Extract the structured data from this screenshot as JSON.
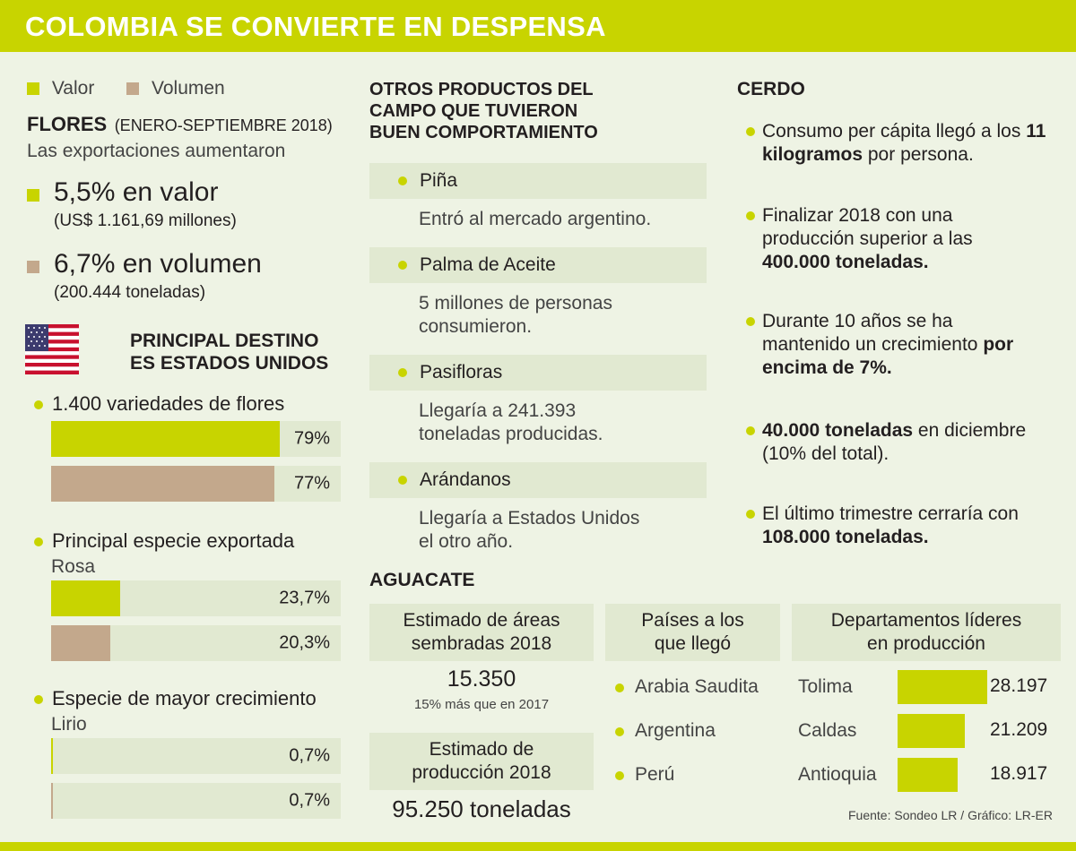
{
  "header": {
    "title": "COLOMBIA SE CONVIERTE EN DESPENSA"
  },
  "colors": {
    "valor": "#c8d400",
    "volumen": "#c3a88c",
    "bg": "#eef3e4",
    "panel": "#e1e9d1"
  },
  "legend": {
    "valor": "Valor",
    "volumen": "Volumen"
  },
  "flores": {
    "title": "FLORES",
    "period": "(ENERO-SEPTIEMBRE 2018)",
    "subtitle": "Las exportaciones aumentaron",
    "valor_pct": "5,5% en valor",
    "valor_detail": "(US$ 1.161,69 millones)",
    "volumen_pct": "6,7% en volumen",
    "volumen_detail": "(200.444 toneladas)",
    "destino_line1": "PRINCIPAL DESTINO",
    "destino_line2": "ES ESTADOS UNIDOS"
  },
  "chart_data": {
    "type": "bar",
    "groups": [
      {
        "label": "1.400 variedades de flores",
        "sublabel": "",
        "valor": 79,
        "valor_label": "79%",
        "volumen": 77,
        "volumen_label": "77%"
      },
      {
        "label": "Principal especie exportada",
        "sublabel": "Rosa",
        "valor": 23.7,
        "valor_label": "23,7%",
        "volumen": 20.3,
        "volumen_label": "20,3%"
      },
      {
        "label": "Especie de mayor crecimiento",
        "sublabel": "Lirio",
        "valor": 0.7,
        "valor_label": "0,7%",
        "volumen": 0.7,
        "volumen_label": "0,7%"
      }
    ],
    "series": [
      {
        "name": "Valor"
      },
      {
        "name": "Volumen"
      }
    ],
    "xlim": [
      0,
      100
    ]
  },
  "otros": {
    "title1": "OTROS PRODUCTOS DEL",
    "title2": "CAMPO QUE TUVIERON",
    "title3": "BUEN COMPORTAMIENTO",
    "items": [
      {
        "name": "Piña",
        "desc1": "Entró al mercado argentino.",
        "desc2": ""
      },
      {
        "name": "Palma de Aceite",
        "desc1": "5 millones de personas",
        "desc2": "consumieron."
      },
      {
        "name": "Pasifloras",
        "desc1": "Llegaría a 241.393",
        "desc2": "toneladas producidas."
      },
      {
        "name": "Arándanos",
        "desc1": "Llegaría a Estados Unidos",
        "desc2": "el otro año."
      }
    ]
  },
  "cerdo": {
    "title": "CERDO",
    "items": [
      {
        "pre": "Consumo per cápita llegó a los",
        "bold": "11 kilogramos",
        "post": " por persona."
      },
      {
        "pre": "Finalizar 2018 con una producción superior a las",
        "bold": "400.000 toneladas.",
        "post": ""
      },
      {
        "pre": "Durante 10 años se ha mantenido un crecimiento",
        "bold": "por encima de 7%.",
        "post": ""
      },
      {
        "pre": "",
        "bold": "40.000 toneladas",
        "post": " en diciembre (10% del total)."
      },
      {
        "pre": "El último trimestre cerraría con",
        "bold": "108.000 toneladas.",
        "post": ""
      }
    ]
  },
  "aguacate": {
    "title": "AGUACATE",
    "areas_title1": "Estimado de áreas",
    "areas_title2": "sembradas 2018",
    "areas_value": "15.350",
    "areas_note": "15% más que en 2017",
    "prod_title1": "Estimado de",
    "prod_title2": "producción 2018",
    "prod_value": "95.250 toneladas",
    "paises_title1": "Países a los",
    "paises_title2": "que llegó",
    "paises": [
      "Arabia Saudita",
      "Argentina",
      "Perú"
    ],
    "dept_title1": "Departamentos líderes",
    "dept_title2": "en producción",
    "departamentos": [
      {
        "name": "Tolima",
        "value": 28197,
        "label": "28.197"
      },
      {
        "name": "Caldas",
        "value": 21209,
        "label": "21.209"
      },
      {
        "name": "Antioquia",
        "value": 18917,
        "label": "18.917"
      }
    ]
  },
  "source": "Fuente: Sondeo LR / Gráfico: LR-ER"
}
